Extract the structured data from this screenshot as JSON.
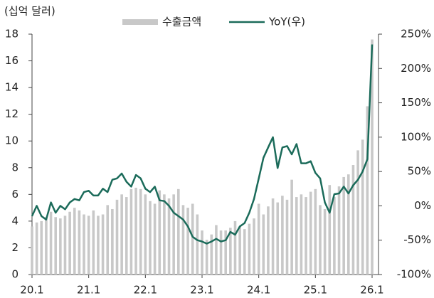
{
  "chart_data": {
    "type": "bar_line",
    "y_label": "(십억 달러)",
    "categories": [
      "20.1",
      null,
      null,
      null,
      null,
      null,
      null,
      null,
      null,
      null,
      null,
      null,
      "21.1",
      null,
      null,
      null,
      null,
      null,
      null,
      null,
      null,
      null,
      null,
      null,
      "22.1",
      null,
      null,
      null,
      null,
      null,
      null,
      null,
      null,
      null,
      null,
      null,
      "23.1",
      null,
      null,
      null,
      null,
      null,
      null,
      null,
      null,
      null,
      null,
      null,
      "24.1",
      null,
      null,
      null,
      null,
      null,
      null,
      null,
      null,
      null,
      null,
      null,
      "25.1",
      null,
      null,
      null,
      null,
      null,
      null,
      null,
      null,
      null,
      null,
      null,
      "26.1"
    ],
    "series": [
      {
        "name": "수출금액",
        "color": "#c8c8c8",
        "type": "bar",
        "values": [
          3.6,
          3.9,
          4.0,
          4.3,
          4.7,
          4.3,
          4.2,
          4.4,
          4.7,
          5.0,
          4.8,
          4.5,
          4.4,
          4.8,
          4.4,
          4.5,
          5.2,
          4.9,
          5.6,
          6.0,
          5.8,
          6.4,
          6.5,
          6.4,
          6.0,
          5.5,
          5.3,
          6.3,
          6.0,
          5.7,
          6.0,
          6.4,
          5.2,
          5.0,
          5.3,
          4.5,
          3.3,
          2.6,
          3.0,
          3.7,
          3.3,
          3.3,
          3.5,
          4.0,
          3.6,
          3.4,
          3.8,
          4.2,
          5.3,
          4.5,
          5.1,
          5.7,
          5.4,
          5.9,
          5.6,
          7.1,
          5.8,
          6.0,
          5.8,
          6.2,
          6.4,
          5.2,
          4.9,
          6.7,
          5.8,
          6.6,
          7.3,
          7.5,
          8.2,
          9.3,
          10.1,
          12.6,
          17.6
        ]
      },
      {
        "name": "YoY(우)",
        "color": "#1b6b5a",
        "type": "line",
        "axis": "y2",
        "values": [
          -15,
          0,
          -15,
          -20,
          5,
          -10,
          0,
          -5,
          5,
          10,
          8,
          20,
          22,
          15,
          15,
          25,
          20,
          38,
          40,
          47,
          35,
          28,
          45,
          40,
          25,
          20,
          28,
          8,
          7,
          0,
          -10,
          -15,
          -20,
          -30,
          -45,
          -50,
          -52,
          -55,
          -52,
          -48,
          -52,
          -50,
          -38,
          -42,
          -30,
          -25,
          -10,
          10,
          40,
          70,
          85,
          100,
          55,
          85,
          87,
          75,
          90,
          62,
          62,
          65,
          48,
          40,
          5,
          -10,
          17,
          18,
          28,
          18,
          30,
          38,
          50,
          68,
          235
        ]
      }
    ],
    "ylim": [
      0,
      18
    ],
    "yticks": [
      0,
      2,
      4,
      6,
      8,
      10,
      12,
      14,
      16,
      18
    ],
    "y2lim": [
      -100,
      250
    ],
    "y2ticks": [
      {
        "value": -100,
        "label": "-100%"
      },
      {
        "value": -50,
        "label": "-50%"
      },
      {
        "value": 0,
        "label": "0%"
      },
      {
        "value": 50,
        "label": "50%"
      },
      {
        "value": 100,
        "label": "100%"
      },
      {
        "value": 150,
        "label": "150%"
      },
      {
        "value": 200,
        "label": "200%"
      },
      {
        "value": 250,
        "label": "250%"
      }
    ],
    "legend": "top"
  }
}
